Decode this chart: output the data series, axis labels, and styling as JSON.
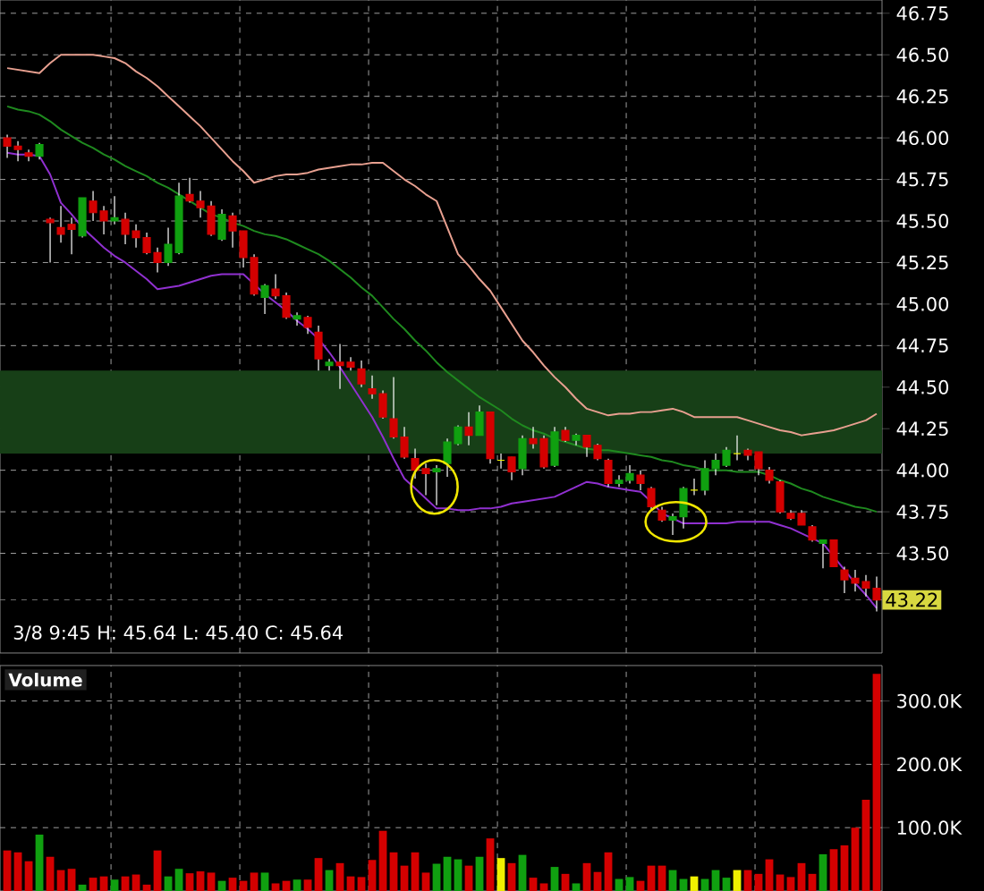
{
  "chart_data": [
    {
      "type": "candlestick",
      "categories": [
        null,
        null,
        null,
        null,
        null,
        null,
        null,
        null,
        null,
        null,
        null,
        null,
        null,
        null,
        null,
        null,
        null,
        null,
        null,
        null,
        null,
        null,
        null,
        null,
        null,
        null,
        null,
        null,
        null,
        null,
        null,
        null,
        null,
        null,
        null,
        null,
        null,
        null,
        null,
        null,
        null,
        null,
        null,
        null,
        null,
        null,
        null,
        null,
        null,
        null,
        null,
        null,
        null,
        null,
        null,
        null,
        null,
        null,
        null,
        null,
        null,
        null,
        null,
        null,
        null,
        null,
        null,
        null,
        null,
        null,
        null,
        null,
        null,
        null,
        null,
        null,
        null,
        null,
        null,
        null,
        null,
        null
      ],
      "ohlc": [
        [
          46.0,
          46.02,
          45.88,
          45.95
        ],
        [
          45.95,
          45.98,
          45.86,
          45.93
        ],
        [
          45.91,
          45.93,
          45.86,
          45.89
        ],
        [
          45.89,
          45.97,
          45.87,
          45.96
        ],
        [
          45.51,
          45.52,
          45.25,
          45.49
        ],
        [
          45.46,
          45.59,
          45.37,
          45.42
        ],
        [
          45.48,
          45.52,
          45.3,
          45.45
        ],
        [
          45.41,
          45.64,
          45.4,
          45.64
        ],
        [
          45.62,
          45.68,
          45.5,
          45.55
        ],
        [
          45.56,
          45.59,
          45.42,
          45.5
        ],
        [
          45.5,
          45.65,
          45.48,
          45.52
        ],
        [
          45.51,
          45.55,
          45.36,
          45.42
        ],
        [
          45.44,
          45.48,
          45.34,
          45.4
        ],
        [
          45.4,
          45.43,
          45.3,
          45.31
        ],
        [
          45.31,
          45.34,
          45.19,
          45.25
        ],
        [
          45.25,
          45.46,
          45.23,
          45.36
        ],
        [
          45.31,
          45.73,
          45.3,
          45.65
        ],
        [
          45.66,
          45.76,
          45.61,
          45.62
        ],
        [
          45.62,
          45.68,
          45.52,
          45.58
        ],
        [
          45.59,
          45.62,
          45.41,
          45.42
        ],
        [
          45.39,
          45.57,
          45.38,
          45.54
        ],
        [
          45.53,
          45.55,
          45.34,
          45.44
        ],
        [
          45.44,
          45.44,
          45.22,
          45.28
        ],
        [
          45.28,
          45.3,
          45.05,
          45.06
        ],
        [
          45.04,
          45.12,
          44.94,
          45.11
        ],
        [
          45.09,
          45.18,
          45.03,
          45.05
        ],
        [
          45.05,
          45.07,
          44.91,
          44.92
        ],
        [
          44.91,
          44.95,
          44.87,
          44.93
        ],
        [
          44.92,
          44.93,
          44.82,
          44.86
        ],
        [
          44.83,
          44.87,
          44.6,
          44.67
        ],
        [
          44.63,
          44.67,
          44.6,
          44.65
        ],
        [
          44.65,
          44.76,
          44.49,
          44.63
        ],
        [
          44.65,
          44.68,
          44.6,
          44.62
        ],
        [
          44.61,
          44.66,
          44.5,
          44.52
        ],
        [
          44.49,
          44.57,
          44.43,
          44.46
        ],
        [
          44.46,
          44.48,
          44.31,
          44.32
        ],
        [
          44.31,
          44.56,
          44.19,
          44.2
        ],
        [
          44.2,
          44.26,
          44.07,
          44.08
        ],
        [
          44.07,
          44.13,
          43.95,
          44.0
        ],
        [
          44.01,
          44.04,
          43.85,
          43.98
        ],
        [
          43.99,
          44.03,
          43.79,
          44.01
        ],
        [
          44.04,
          44.19,
          43.96,
          44.17
        ],
        [
          44.16,
          44.27,
          44.15,
          44.26
        ],
        [
          44.26,
          44.35,
          44.15,
          44.21
        ],
        [
          44.21,
          44.39,
          44.21,
          44.35
        ],
        [
          44.35,
          44.35,
          44.04,
          44.07
        ],
        [
          44.06,
          44.1,
          44.01,
          44.06
        ],
        [
          44.08,
          44.08,
          43.94,
          43.99
        ],
        [
          44.01,
          44.21,
          43.97,
          44.19
        ],
        [
          44.19,
          44.26,
          44.13,
          44.16
        ],
        [
          44.19,
          44.21,
          44.01,
          44.02
        ],
        [
          44.03,
          44.26,
          44.02,
          44.23
        ],
        [
          44.24,
          44.26,
          44.17,
          44.18
        ],
        [
          44.18,
          44.22,
          44.15,
          44.21
        ],
        [
          44.21,
          44.21,
          44.08,
          44.14
        ],
        [
          44.15,
          44.16,
          44.06,
          44.07
        ],
        [
          44.06,
          44.07,
          43.9,
          43.92
        ],
        [
          43.92,
          43.97,
          43.9,
          43.94
        ],
        [
          43.94,
          44.03,
          43.92,
          43.98
        ],
        [
          43.97,
          44.0,
          43.88,
          43.92
        ],
        [
          43.89,
          43.9,
          43.76,
          43.78
        ],
        [
          43.76,
          43.78,
          43.69,
          43.7
        ],
        [
          43.7,
          43.74,
          43.61,
          43.72
        ],
        [
          43.72,
          43.9,
          43.65,
          43.89
        ],
        [
          43.88,
          43.95,
          43.85,
          43.88
        ],
        [
          43.88,
          44.06,
          43.85,
          44.01
        ],
        [
          44.01,
          44.1,
          43.97,
          44.06
        ],
        [
          44.03,
          44.14,
          44.02,
          44.12
        ],
        [
          44.1,
          44.21,
          44.06,
          44.1
        ],
        [
          44.12,
          44.13,
          44.06,
          44.09
        ],
        [
          44.11,
          44.11,
          43.97,
          44.01
        ],
        [
          44.0,
          44.02,
          43.92,
          43.94
        ],
        [
          43.93,
          43.94,
          43.74,
          43.75
        ],
        [
          43.74,
          43.76,
          43.7,
          43.71
        ],
        [
          43.74,
          43.76,
          43.67,
          43.67
        ],
        [
          43.66,
          43.67,
          43.57,
          43.58
        ],
        [
          43.56,
          43.58,
          43.41,
          43.58
        ],
        [
          43.58,
          43.58,
          43.42,
          43.42
        ],
        [
          43.4,
          43.42,
          43.26,
          43.34
        ],
        [
          43.35,
          43.4,
          43.27,
          43.32
        ],
        [
          43.33,
          43.37,
          43.24,
          43.29
        ],
        [
          43.29,
          43.36,
          43.15,
          43.22
        ]
      ],
      "colors": [
        "#d40000",
        "#d40000",
        "#d40000",
        "#10a010",
        "#d40000",
        "#d40000",
        "#d40000",
        "#10a010",
        "#d40000",
        "#d40000",
        "#10a010",
        "#d40000",
        "#d40000",
        "#d40000",
        "#d40000",
        "#10a010",
        "#10a010",
        "#d40000",
        "#d40000",
        "#d40000",
        "#10a010",
        "#d40000",
        "#d40000",
        "#d40000",
        "#10a010",
        "#d40000",
        "#d40000",
        "#10a010",
        "#d40000",
        "#d40000",
        "#10a010",
        "#d40000",
        "#d40000",
        "#d40000",
        "#d40000",
        "#d40000",
        "#d40000",
        "#d40000",
        "#d40000",
        "#d40000",
        "#10a010",
        "#10a010",
        "#10a010",
        "#d40000",
        "#10a010",
        "#d40000",
        "#f0f000",
        "#d40000",
        "#10a010",
        "#d40000",
        "#d40000",
        "#10a010",
        "#d40000",
        "#10a010",
        "#d40000",
        "#d40000",
        "#d40000",
        "#10a010",
        "#10a010",
        "#d40000",
        "#d40000",
        "#d40000",
        "#10a010",
        "#10a010",
        "#f0f000",
        "#10a010",
        "#10a010",
        "#10a010",
        "#f0f000",
        "#d40000",
        "#d40000",
        "#d40000",
        "#d40000",
        "#d40000",
        "#d40000",
        "#d40000",
        "#10a010",
        "#d40000",
        "#d40000",
        "#d40000",
        "#d40000",
        "#d40000"
      ],
      "series": [
        {
          "type": "line",
          "color": "#e8a090",
          "values": [
            46.42,
            46.41,
            46.4,
            46.39,
            46.45,
            46.5,
            46.5,
            46.5,
            46.5,
            46.49,
            46.48,
            46.45,
            46.4,
            46.36,
            46.31,
            46.25,
            46.19,
            46.13,
            46.07,
            46.0,
            45.93,
            45.86,
            45.8,
            45.73,
            45.75,
            45.77,
            45.78,
            45.78,
            45.79,
            45.81,
            45.82,
            45.83,
            45.84,
            45.84,
            45.85,
            45.85,
            45.8,
            45.75,
            45.71,
            45.66,
            45.62,
            45.46,
            45.3,
            45.23,
            45.15,
            45.08,
            44.98,
            44.88,
            44.78,
            44.71,
            44.63,
            44.56,
            44.5,
            44.43,
            44.37,
            44.35,
            44.33,
            44.34,
            44.34,
            44.35,
            44.35,
            44.36,
            44.37,
            44.35,
            44.32,
            44.32,
            44.32,
            44.32,
            44.32,
            44.3,
            44.28,
            44.26,
            44.24,
            44.23,
            44.21,
            44.22,
            44.23,
            44.24,
            44.26,
            44.28,
            44.3,
            44.34
          ]
        },
        {
          "type": "line",
          "color": "#1f8a1f",
          "values": [
            46.19,
            46.17,
            46.16,
            46.14,
            46.1,
            46.05,
            46.01,
            45.97,
            45.94,
            45.9,
            45.87,
            45.83,
            45.8,
            45.77,
            45.73,
            45.7,
            45.66,
            45.62,
            45.58,
            45.54,
            45.52,
            45.49,
            45.47,
            45.44,
            45.42,
            45.41,
            45.39,
            45.36,
            45.33,
            45.3,
            45.26,
            45.21,
            45.16,
            45.1,
            45.05,
            44.98,
            44.91,
            44.85,
            44.78,
            44.72,
            44.65,
            44.59,
            44.54,
            44.49,
            44.44,
            44.4,
            44.36,
            44.31,
            44.27,
            44.24,
            44.22,
            44.19,
            44.17,
            44.15,
            44.13,
            44.12,
            44.12,
            44.11,
            44.1,
            44.09,
            44.08,
            44.06,
            44.05,
            44.03,
            44.02,
            44.0,
            44.0,
            44.0,
            43.99,
            43.99,
            43.99,
            43.97,
            43.94,
            43.92,
            43.89,
            43.87,
            43.84,
            43.82,
            43.8,
            43.78,
            43.77,
            43.75
          ]
        },
        {
          "type": "line",
          "color": "#9030d0",
          "values": [
            45.91,
            45.9,
            45.9,
            45.89,
            45.78,
            45.61,
            45.54,
            45.46,
            45.4,
            45.34,
            45.29,
            45.25,
            45.2,
            45.15,
            45.09,
            45.1,
            45.11,
            45.13,
            45.15,
            45.17,
            45.18,
            45.18,
            45.18,
            45.12,
            45.06,
            45.01,
            44.96,
            44.9,
            44.85,
            44.79,
            44.71,
            44.62,
            44.52,
            44.42,
            44.32,
            44.2,
            44.07,
            43.95,
            43.89,
            43.83,
            43.77,
            43.77,
            43.76,
            43.76,
            43.77,
            43.77,
            43.78,
            43.8,
            43.81,
            43.82,
            43.83,
            43.84,
            43.87,
            43.9,
            43.93,
            43.92,
            43.9,
            43.89,
            43.88,
            43.87,
            43.81,
            43.74,
            43.71,
            43.68,
            43.68,
            43.68,
            43.68,
            43.68,
            43.69,
            43.69,
            43.69,
            43.69,
            43.67,
            43.65,
            43.62,
            43.59,
            43.56,
            43.48,
            43.4,
            43.32,
            43.25,
            43.17
          ]
        }
      ],
      "ylim": [
        42.9,
        46.83
      ],
      "yticks": [
        {
          "value": 43.5,
          "label": "43.50"
        },
        43.75,
        {
          "value": 44,
          "label": "44.00"
        },
        44.25,
        {
          "value": 44.5,
          "label": "44.50"
        },
        44.75,
        {
          "value": 45,
          "label": "45.00"
        },
        45.25,
        {
          "value": 45.5,
          "label": "45.50"
        },
        45.75,
        {
          "value": 46,
          "label": "46.00"
        },
        46.25,
        {
          "value": 46.5,
          "label": "46.50"
        },
        46.75
      ],
      "bands": [
        {
          "axis": "y",
          "from": 44.1,
          "to": 44.6,
          "color": "#173f17"
        }
      ],
      "ref_lines": [
        {
          "axis": "y",
          "value": 43.22,
          "label": "43.22",
          "color": "#8a8a8a",
          "line_style": "dashed"
        }
      ],
      "annotations": [
        "3/8 9:45 H: 45.64 L: 45.40 C: 45.64"
      ],
      "grid": true,
      "tick_labels": "y"
    },
    {
      "type": "bar",
      "title": "Volume",
      "categories": [
        null,
        null,
        null,
        null,
        null,
        null,
        null,
        null,
        null,
        null,
        null,
        null,
        null,
        null,
        null,
        null,
        null,
        null,
        null,
        null,
        null,
        null,
        null,
        null,
        null,
        null,
        null,
        null,
        null,
        null,
        null,
        null,
        null,
        null,
        null,
        null,
        null,
        null,
        null,
        null,
        null,
        null,
        null,
        null,
        null,
        null,
        null,
        null,
        null,
        null,
        null,
        null,
        null,
        null,
        null,
        null,
        null,
        null,
        null,
        null,
        null,
        null,
        null,
        null,
        null,
        null,
        null,
        null,
        null,
        null,
        null,
        null,
        null,
        null,
        null,
        null,
        null,
        null,
        null,
        null,
        null,
        null
      ],
      "values": [
        64000,
        61000,
        47000,
        89000,
        54000,
        33000,
        35000,
        10000,
        21000,
        23000,
        18000,
        23000,
        26000,
        10000,
        64000,
        23000,
        35000,
        28000,
        31000,
        29000,
        16000,
        21000,
        16000,
        29000,
        29000,
        12000,
        16000,
        18000,
        18000,
        52000,
        33000,
        44000,
        23000,
        22000,
        49000,
        95000,
        61000,
        40000,
        61000,
        29000,
        43000,
        54000,
        50000,
        40000,
        54000,
        83000,
        52000,
        44000,
        57000,
        21000,
        12000,
        38000,
        27000,
        12000,
        44000,
        30000,
        61000,
        19000,
        22000,
        16000,
        40000,
        40000,
        33000,
        19000,
        23000,
        19000,
        33000,
        21000,
        33000,
        33000,
        27000,
        50000,
        26000,
        22000,
        44000,
        27000,
        58000,
        66000,
        72000,
        100000,
        144000,
        343000
      ],
      "colors": [
        "#d40000",
        "#d40000",
        "#d40000",
        "#10a010",
        "#d40000",
        "#d40000",
        "#d40000",
        "#10a010",
        "#d40000",
        "#d40000",
        "#10a010",
        "#d40000",
        "#d40000",
        "#d40000",
        "#d40000",
        "#10a010",
        "#10a010",
        "#d40000",
        "#d40000",
        "#d40000",
        "#10a010",
        "#d40000",
        "#d40000",
        "#d40000",
        "#10a010",
        "#d40000",
        "#d40000",
        "#10a010",
        "#d40000",
        "#d40000",
        "#10a010",
        "#d40000",
        "#d40000",
        "#d40000",
        "#d40000",
        "#d40000",
        "#d40000",
        "#d40000",
        "#d40000",
        "#d40000",
        "#10a010",
        "#10a010",
        "#10a010",
        "#d40000",
        "#10a010",
        "#d40000",
        "#f0f000",
        "#d40000",
        "#10a010",
        "#d40000",
        "#d40000",
        "#10a010",
        "#d40000",
        "#10a010",
        "#d40000",
        "#d40000",
        "#d40000",
        "#10a010",
        "#10a010",
        "#d40000",
        "#d40000",
        "#d40000",
        "#10a010",
        "#10a010",
        "#f0f000",
        "#10a010",
        "#10a010",
        "#10a010",
        "#f0f000",
        "#d40000",
        "#d40000",
        "#d40000",
        "#d40000",
        "#d40000",
        "#d40000",
        "#d40000",
        "#10a010",
        "#d40000",
        "#d40000",
        "#d40000",
        "#d40000",
        "#d40000"
      ],
      "ylim": [
        0,
        356000
      ],
      "yticks": [
        {
          "value": 100000,
          "label": "100.0K"
        },
        {
          "value": 200000,
          "label": "200.0K"
        },
        {
          "value": 300000,
          "label": "300.0K"
        }
      ],
      "grid": true,
      "tick_labels": "y"
    }
  ]
}
